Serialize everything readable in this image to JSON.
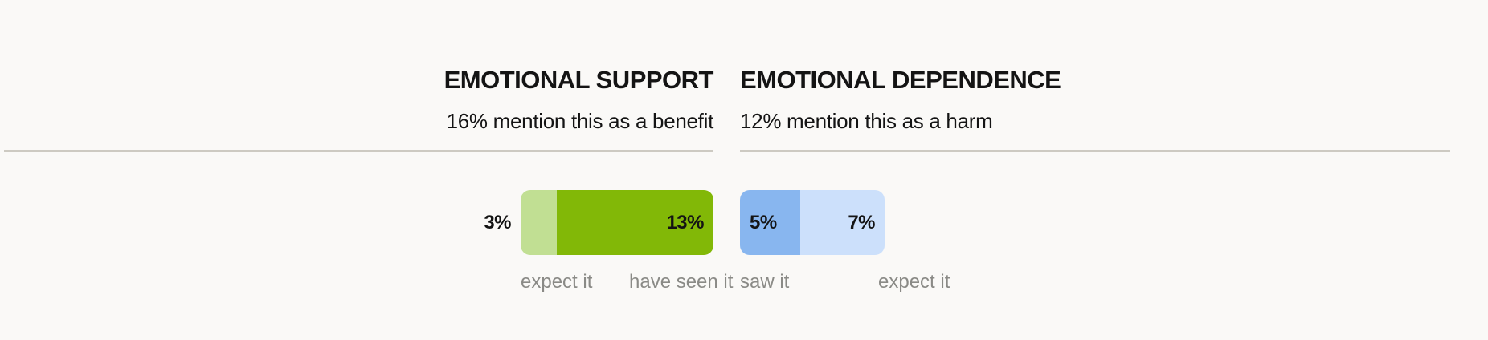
{
  "chart_data": [
    {
      "type": "bar",
      "stacked": true,
      "orientation": "horizontal",
      "title": "EMOTIONAL SUPPORT",
      "subtitle": "16% mention this as a benefit",
      "unit": "%",
      "series": [
        {
          "name": "expect it",
          "value": 3,
          "label": "3%",
          "color": "#c1df93"
        },
        {
          "name": "have seen it",
          "value": 13,
          "label": "13%",
          "color": "#82b807"
        }
      ]
    },
    {
      "type": "bar",
      "stacked": true,
      "orientation": "horizontal",
      "title": "EMOTIONAL DEPENDENCE",
      "subtitle": "12% mention this as a harm",
      "unit": "%",
      "series": [
        {
          "name": "saw it",
          "value": 5,
          "label": "5%",
          "color": "#88b6ef"
        },
        {
          "name": "expect it",
          "value": 7,
          "label": "7%",
          "color": "#cce0fb"
        }
      ]
    }
  ]
}
